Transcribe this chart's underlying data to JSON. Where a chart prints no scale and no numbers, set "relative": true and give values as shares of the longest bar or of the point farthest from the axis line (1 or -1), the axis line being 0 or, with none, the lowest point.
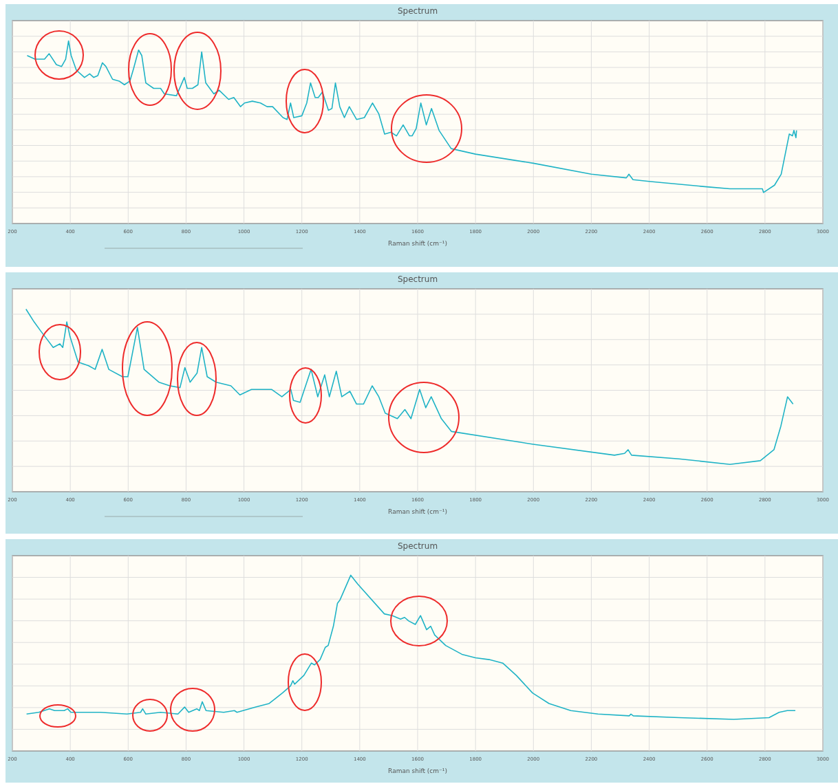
{
  "chart_data": [
    {
      "type": "line",
      "title": "Spectrum",
      "xlabel": "Raman shift (cm⁻¹)",
      "relative": true,
      "grid": true,
      "xlim": [
        200,
        3000
      ],
      "xticks": [
        200,
        400,
        600,
        800,
        1000,
        1200,
        1400,
        1600,
        1800,
        2000,
        2200,
        2400,
        2600,
        2800,
        3000
      ],
      "series": [
        {
          "color": "#1fb3c6",
          "x": [
            251,
            278,
            311,
            327,
            352,
            370,
            384,
            394,
            403,
            421,
            449,
            467,
            481,
            495,
            511,
            523,
            546,
            569,
            587,
            606,
            619,
            636,
            647,
            661,
            688,
            712,
            725,
            767,
            794,
            804,
            822,
            841,
            854,
            868,
            896,
            914,
            947,
            965,
            988,
            1002,
            1029,
            1057,
            1080,
            1099,
            1135,
            1149,
            1161,
            1172,
            1200,
            1217,
            1230,
            1246,
            1257,
            1271,
            1292,
            1304,
            1316,
            1331,
            1347,
            1364,
            1389,
            1416,
            1444,
            1466,
            1486,
            1508,
            1527,
            1550,
            1572,
            1581,
            1595,
            1611,
            1630,
            1648,
            1674,
            1716,
            1800,
            2000,
            2200,
            2321,
            2330,
            2344,
            2405,
            2605,
            2679,
            2791,
            2795,
            2833,
            2856,
            2884,
            2895,
            2900,
            2907,
            2909
          ],
          "values": [
            0.92,
            0.9,
            0.9,
            0.93,
            0.87,
            0.86,
            0.9,
            1.0,
            0.92,
            0.84,
            0.8,
            0.82,
            0.8,
            0.81,
            0.88,
            0.86,
            0.79,
            0.78,
            0.76,
            0.78,
            0.85,
            0.95,
            0.92,
            0.77,
            0.74,
            0.74,
            0.71,
            0.7,
            0.8,
            0.74,
            0.74,
            0.76,
            0.94,
            0.77,
            0.71,
            0.73,
            0.68,
            0.69,
            0.64,
            0.66,
            0.67,
            0.66,
            0.64,
            0.64,
            0.58,
            0.57,
            0.66,
            0.58,
            0.59,
            0.66,
            0.77,
            0.69,
            0.69,
            0.72,
            0.62,
            0.63,
            0.77,
            0.64,
            0.58,
            0.64,
            0.57,
            0.58,
            0.66,
            0.6,
            0.49,
            0.5,
            0.48,
            0.54,
            0.48,
            0.48,
            0.52,
            0.66,
            0.54,
            0.63,
            0.51,
            0.41,
            0.38,
            0.33,
            0.27,
            0.25,
            0.27,
            0.24,
            0.23,
            0.2,
            0.19,
            0.19,
            0.17,
            0.21,
            0.27,
            0.49,
            0.48,
            0.51,
            0.47,
            0.51
          ]
        }
      ]
    },
    {
      "type": "line",
      "title": "Spectrum",
      "xlabel": "Raman shift (cm⁻¹)",
      "relative": true,
      "grid": true,
      "xlim": [
        200,
        3000
      ],
      "xticks": [
        200,
        400,
        600,
        800,
        1000,
        1200,
        1400,
        1600,
        1800,
        2000,
        2200,
        2400,
        2600,
        2800,
        3000
      ],
      "series": [
        {
          "color": "#1fb3c6",
          "x": [
            247,
            275,
            298,
            322,
            341,
            364,
            374,
            388,
            399,
            427,
            463,
            486,
            510,
            533,
            580,
            599,
            632,
            655,
            706,
            744,
            779,
            796,
            814,
            838,
            854,
            873,
            904,
            955,
            986,
            1026,
            1096,
            1131,
            1162,
            1171,
            1194,
            1232,
            1255,
            1279,
            1295,
            1319,
            1338,
            1366,
            1389,
            1413,
            1443,
            1466,
            1488,
            1530,
            1556,
            1577,
            1607,
            1628,
            1647,
            1682,
            1717,
            1999,
            2280,
            2315,
            2327,
            2339,
            2503,
            2679,
            2784,
            2831,
            2855,
            2878,
            2897
          ],
          "values": [
            1.0,
            0.93,
            0.88,
            0.83,
            0.79,
            0.81,
            0.79,
            0.93,
            0.85,
            0.71,
            0.69,
            0.67,
            0.78,
            0.67,
            0.63,
            0.63,
            0.9,
            0.67,
            0.6,
            0.58,
            0.57,
            0.68,
            0.6,
            0.65,
            0.79,
            0.63,
            0.6,
            0.58,
            0.53,
            0.56,
            0.56,
            0.52,
            0.56,
            0.5,
            0.49,
            0.67,
            0.52,
            0.64,
            0.52,
            0.66,
            0.52,
            0.55,
            0.48,
            0.48,
            0.58,
            0.52,
            0.43,
            0.4,
            0.45,
            0.4,
            0.56,
            0.46,
            0.52,
            0.4,
            0.33,
            0.26,
            0.2,
            0.21,
            0.23,
            0.2,
            0.18,
            0.15,
            0.17,
            0.23,
            0.36,
            0.52,
            0.48
          ]
        }
      ]
    },
    {
      "type": "line",
      "title": "Spectrum",
      "xlabel": "Raman shift (cm⁻¹)",
      "relative": true,
      "grid": true,
      "xlim": [
        200,
        3000
      ],
      "xticks": [
        200,
        400,
        600,
        800,
        1000,
        1200,
        1400,
        1600,
        1800,
        2000,
        2200,
        2400,
        2600,
        2800,
        3000
      ],
      "series": [
        {
          "color": "#1fb3c6",
          "x": [
            249,
            291,
            328,
            346,
            379,
            391,
            402,
            467,
            504,
            596,
            643,
            650,
            661,
            712,
            772,
            795,
            809,
            837,
            846,
            856,
            869,
            930,
            967,
            976,
            1041,
            1087,
            1133,
            1161,
            1169,
            1175,
            1207,
            1233,
            1244,
            1263,
            1281,
            1291,
            1309,
            1323,
            1332,
            1369,
            1393,
            1485,
            1513,
            1541,
            1555,
            1569,
            1592,
            1610,
            1631,
            1645,
            1659,
            1697,
            1753,
            1800,
            1847,
            1894,
            1941,
            1997,
            2054,
            2129,
            2223,
            2331,
            2337,
            2345,
            2504,
            2692,
            2814,
            2849,
            2877,
            2905
          ],
          "values": [
            0.21,
            0.22,
            0.24,
            0.23,
            0.23,
            0.24,
            0.22,
            0.22,
            0.22,
            0.21,
            0.22,
            0.24,
            0.21,
            0.22,
            0.21,
            0.25,
            0.22,
            0.24,
            0.23,
            0.28,
            0.23,
            0.22,
            0.23,
            0.22,
            0.25,
            0.27,
            0.33,
            0.37,
            0.4,
            0.38,
            0.43,
            0.5,
            0.49,
            0.52,
            0.59,
            0.6,
            0.71,
            0.84,
            0.86,
            1.0,
            0.95,
            0.78,
            0.77,
            0.75,
            0.76,
            0.74,
            0.72,
            0.77,
            0.69,
            0.71,
            0.66,
            0.6,
            0.55,
            0.53,
            0.52,
            0.5,
            0.43,
            0.33,
            0.27,
            0.23,
            0.21,
            0.2,
            0.21,
            0.2,
            0.19,
            0.18,
            0.19,
            0.22,
            0.23,
            0.23
          ]
        }
      ]
    }
  ]
}
